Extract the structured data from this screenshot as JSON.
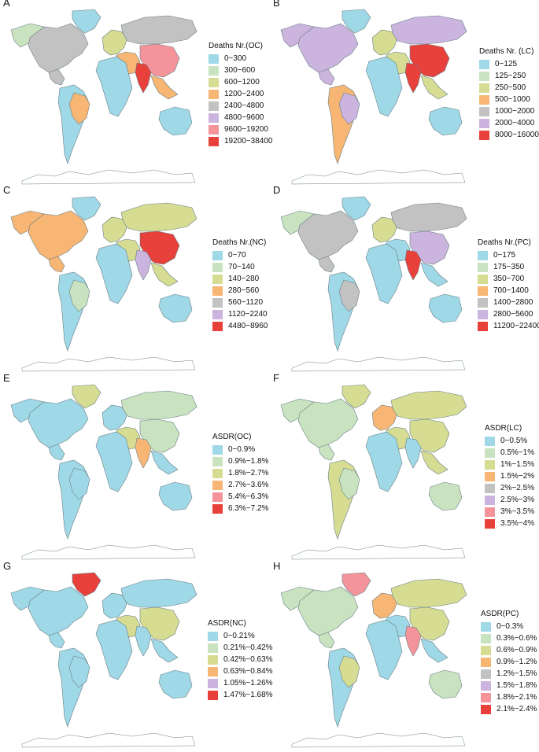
{
  "colors": {
    "c1": "#9FD8E6",
    "c2": "#C9E3C0",
    "c3": "#D6DD93",
    "c4": "#F7B673",
    "c5": "#C2C2C2",
    "c6": "#CBB4DE",
    "c7": "#F4949A",
    "c8": "#E8403B",
    "land_outline": "#6b7f87",
    "antarctica": "#ffffff"
  },
  "panels": [
    {
      "letter": "A",
      "legend_title": "Deaths Nr.(OC)",
      "legend": [
        "0−300",
        "300−600",
        "600−1200",
        "1200−2400",
        "2400−4800",
        "4800−9600",
        "9600−19200",
        "19200−38400"
      ],
      "legend_colors": [
        "c1",
        "c2",
        "c3",
        "c4",
        "c5",
        "c6",
        "c7",
        "c8"
      ],
      "regions": {
        "north_america": "c5",
        "greenland": "c1",
        "alaska": "c2",
        "south_america": "c1",
        "brazil": "c4",
        "europe": "c3",
        "africa": "c1",
        "russia": "c5",
        "middle_east": "c4",
        "india": "c8",
        "china": "c7",
        "southeast_asia": "c4",
        "australia": "c1"
      }
    },
    {
      "letter": "B",
      "legend_title": "Deaths Nr. (LC)",
      "legend": [
        "0−125",
        "125−250",
        "250−500",
        "500−1000",
        "1000−2000",
        "2000−4000",
        "8000−16000"
      ],
      "legend_colors": [
        "c1",
        "c2",
        "c3",
        "c4",
        "c5",
        "c6",
        "c8"
      ],
      "regions": {
        "north_america": "c6",
        "greenland": "c1",
        "alaska": "c6",
        "south_america": "c4",
        "brazil": "c6",
        "europe": "c3",
        "africa": "c1",
        "russia": "c6",
        "middle_east": "c3",
        "india": "c8",
        "china": "c8",
        "southeast_asia": "c3",
        "australia": "c1"
      }
    },
    {
      "letter": "C",
      "legend_title": "Deaths Nr.(NC)",
      "legend": [
        "0−70",
        "70−140",
        "140−280",
        "280−560",
        "560−1120",
        "1120−2240",
        "4480−8960"
      ],
      "legend_colors": [
        "c1",
        "c2",
        "c3",
        "c4",
        "c5",
        "c6",
        "c8"
      ],
      "regions": {
        "north_america": "c4",
        "greenland": "c1",
        "alaska": "c4",
        "south_america": "c1",
        "brazil": "c2",
        "europe": "c3",
        "africa": "c1",
        "russia": "c3",
        "middle_east": "c3",
        "india": "c6",
        "china": "c8",
        "southeast_asia": "c3",
        "australia": "c1"
      }
    },
    {
      "letter": "D",
      "legend_title": "Deaths Nr.(PC)",
      "legend": [
        "0−175",
        "175−350",
        "350−700",
        "700−1400",
        "1400−2800",
        "2800−5600",
        "11200−22400"
      ],
      "legend_colors": [
        "c1",
        "c2",
        "c3",
        "c4",
        "c5",
        "c6",
        "c8"
      ],
      "regions": {
        "north_america": "c5",
        "greenland": "c1",
        "alaska": "c2",
        "south_america": "c1",
        "brazil": "c5",
        "europe": "c3",
        "africa": "c1",
        "russia": "c5",
        "middle_east": "c1",
        "india": "c8",
        "china": "c6",
        "southeast_asia": "c1",
        "australia": "c1"
      }
    },
    {
      "letter": "E",
      "legend_title": "ASDR(OC)",
      "legend": [
        "0−0.9%",
        "0.9%−1.8%",
        "1.8%−2.7%",
        "2.7%−3.6%",
        "5.4%−6.3%",
        "6.3%−7.2%"
      ],
      "legend_colors": [
        "c1",
        "c2",
        "c3",
        "c4",
        "c7",
        "c8"
      ],
      "regions": {
        "north_america": "c1",
        "greenland": "c3",
        "alaska": "c1",
        "south_america": "c1",
        "brazil": "c1",
        "europe": "c1",
        "africa": "c1",
        "russia": "c2",
        "middle_east": "c3",
        "india": "c4",
        "china": "c2",
        "southeast_asia": "c1",
        "australia": "c1"
      }
    },
    {
      "letter": "F",
      "legend_title": "ASDR(LC)",
      "legend": [
        "0−0.5%",
        "0.5%−1%",
        "1%−1.5%",
        "1.5%−2%",
        "2%−2.5%",
        "2.5%−3%",
        "3%−3.5%",
        "3.5%−4%"
      ],
      "legend_colors": [
        "c1",
        "c2",
        "c3",
        "c4",
        "c5",
        "c6",
        "c7",
        "c8"
      ],
      "regions": {
        "north_america": "c2",
        "greenland": "c3",
        "alaska": "c2",
        "south_america": "c3",
        "brazil": "c2",
        "europe": "c4",
        "africa": "c1",
        "russia": "c3",
        "middle_east": "c3",
        "india": "c1",
        "china": "c3",
        "southeast_asia": "c3",
        "australia": "c2"
      }
    },
    {
      "letter": "G",
      "legend_title": "ASDR(NC)",
      "legend": [
        "0−0.21%",
        "0.21%−0.42%",
        "0.42%−0.63%",
        "0.63%−0.84%",
        "1.05%−1.26%",
        "1.47%−1.68%"
      ],
      "legend_colors": [
        "c1",
        "c2",
        "c3",
        "c4",
        "c6",
        "c8"
      ],
      "regions": {
        "north_america": "c1",
        "greenland": "c8",
        "alaska": "c1",
        "south_america": "c1",
        "brazil": "c1",
        "europe": "c1",
        "africa": "c1",
        "russia": "c1",
        "middle_east": "c3",
        "india": "c1",
        "china": "c3",
        "southeast_asia": "c1",
        "australia": "c1"
      }
    },
    {
      "letter": "H",
      "legend_title": "ASDR(PC)",
      "legend": [
        "0−0.3%",
        "0.3%−0.6%",
        "0.6%−0.9%",
        "0.9%−1.2%",
        "1.2%−1.5%",
        "1.5%−1.8%",
        "1.8%−2.1%",
        "2.1%−2.4%"
      ],
      "legend_colors": [
        "c1",
        "c2",
        "c3",
        "c4",
        "c5",
        "c6",
        "c7",
        "c8"
      ],
      "regions": {
        "north_america": "c2",
        "greenland": "c7",
        "alaska": "c2",
        "south_america": "c1",
        "brazil": "c3",
        "europe": "c4",
        "africa": "c1",
        "russia": "c3",
        "middle_east": "c1",
        "india": "c7",
        "china": "c3",
        "southeast_asia": "c1",
        "australia": "c2"
      }
    }
  ]
}
